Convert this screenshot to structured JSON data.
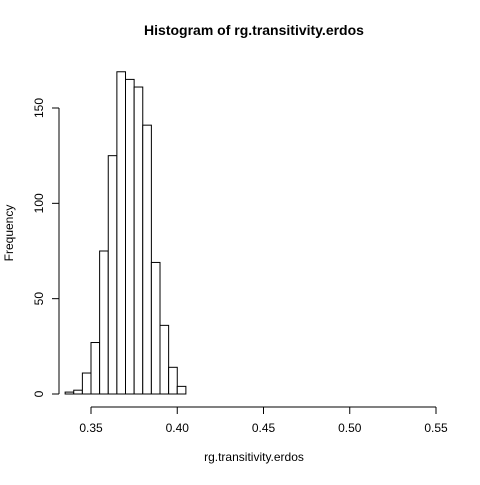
{
  "chart_data": {
    "type": "bar",
    "title": "Histogram of rg.transitivity.erdos",
    "xlabel": "rg.transitivity.erdos",
    "ylabel": "Frequency",
    "bin_width": 0.005,
    "bins": [
      {
        "start": 0.335,
        "end": 0.34,
        "value": 1
      },
      {
        "start": 0.34,
        "end": 0.345,
        "value": 2
      },
      {
        "start": 0.345,
        "end": 0.35,
        "value": 11
      },
      {
        "start": 0.35,
        "end": 0.355,
        "value": 27
      },
      {
        "start": 0.355,
        "end": 0.36,
        "value": 75
      },
      {
        "start": 0.36,
        "end": 0.365,
        "value": 125
      },
      {
        "start": 0.365,
        "end": 0.37,
        "value": 169
      },
      {
        "start": 0.37,
        "end": 0.375,
        "value": 165
      },
      {
        "start": 0.375,
        "end": 0.38,
        "value": 161
      },
      {
        "start": 0.38,
        "end": 0.385,
        "value": 141
      },
      {
        "start": 0.385,
        "end": 0.39,
        "value": 69
      },
      {
        "start": 0.39,
        "end": 0.395,
        "value": 36
      },
      {
        "start": 0.395,
        "end": 0.4,
        "value": 14
      },
      {
        "start": 0.4,
        "end": 0.405,
        "value": 4
      }
    ],
    "xlim": [
      0.335,
      0.55
    ],
    "ylim": [
      0,
      175
    ],
    "x_ticks": [
      0.35,
      0.4,
      0.45,
      0.5,
      0.55
    ],
    "x_tick_labels": [
      "0.35",
      "0.40",
      "0.45",
      "0.50",
      "0.55"
    ],
    "y_ticks": [
      0,
      50,
      100,
      150
    ],
    "y_tick_labels": [
      "0",
      "50",
      "100",
      "150"
    ],
    "grid": false,
    "bar_fill": "#ffffff",
    "bar_stroke": "#000000"
  }
}
